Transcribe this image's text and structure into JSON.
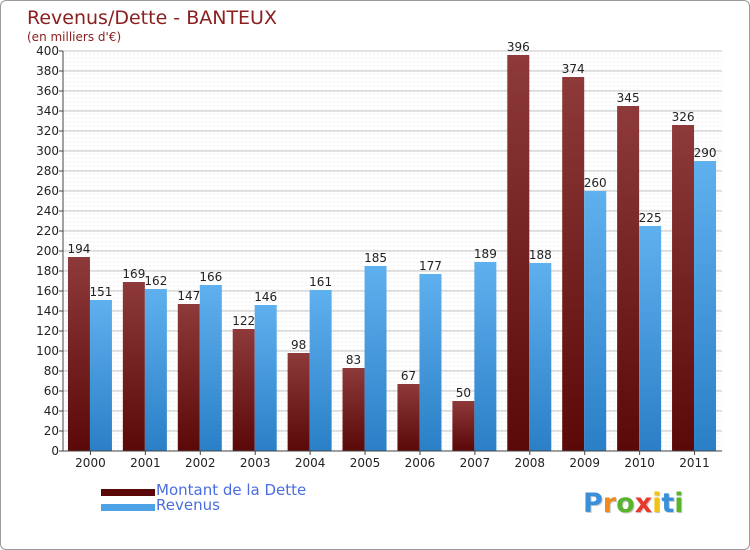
{
  "chart_data": {
    "type": "bar",
    "title": "Revenus/Dette - BANTEUX",
    "subtitle": "(en milliers d'€)",
    "categories": [
      "2000",
      "2001",
      "2002",
      "2003",
      "2004",
      "2005",
      "2006",
      "2007",
      "2008",
      "2009",
      "2010",
      "2011"
    ],
    "series": [
      {
        "name": "Montant de la Dette",
        "color": "#7a1d1d",
        "values": [
          194,
          169,
          147,
          122,
          98,
          83,
          67,
          50,
          396,
          374,
          345,
          326
        ]
      },
      {
        "name": "Revenus",
        "color": "#4da3e6",
        "values": [
          151,
          162,
          166,
          146,
          161,
          185,
          177,
          189,
          188,
          260,
          225,
          290
        ]
      }
    ],
    "ylim": [
      0,
      400
    ],
    "ytick_step": 20,
    "grid": true,
    "legend_position": "bottom-left"
  },
  "logo": {
    "letters": [
      "P",
      "r",
      "o",
      "x",
      "i",
      "t",
      "i"
    ],
    "colors": [
      "#3a8fd9",
      "#f08a1c",
      "#5ab32e",
      "#e63a2e",
      "#f2c21b",
      "#3a8fd9",
      "#5ab32e"
    ]
  }
}
